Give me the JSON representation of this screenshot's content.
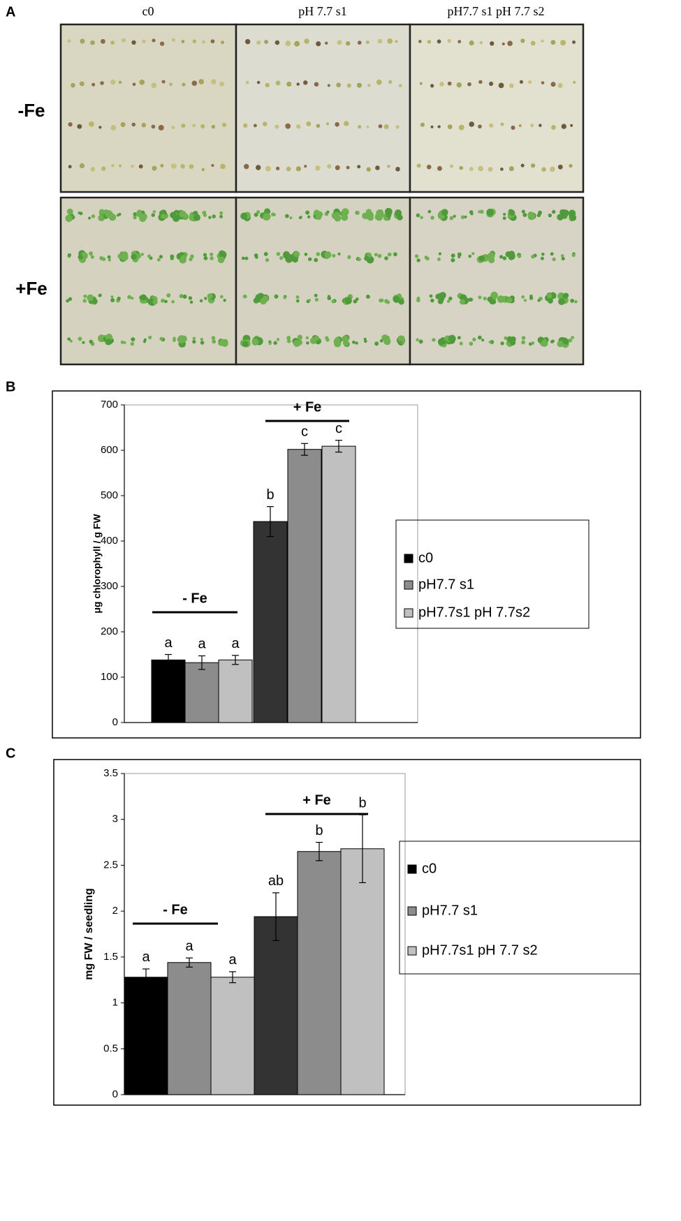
{
  "panel_a": {
    "label": "A",
    "columns": [
      "c0",
      "pH 7.7 s1",
      "pH7.7 s1 pH 7.7 s2"
    ],
    "rows": [
      "-Fe",
      "+Fe"
    ]
  },
  "chart_data": [
    {
      "type": "bar",
      "label": "B",
      "ylabel": "μg chlorophyll / g FW",
      "groups": [
        "- Fe",
        "+ Fe"
      ],
      "ylim": [
        0,
        700
      ],
      "yticks": [
        0,
        100,
        200,
        300,
        400,
        500,
        600,
        700
      ],
      "series": [
        {
          "name": "c0",
          "color": "#000000",
          "colors": [
            "#000000",
            "#333333"
          ],
          "values": [
            138,
            443
          ],
          "errors": [
            12,
            33
          ],
          "letters": [
            "a",
            "b"
          ]
        },
        {
          "name": "pH7.7 s1",
          "color": "#8c8c8c",
          "colors": [
            "#8c8c8c",
            "#8c8c8c"
          ],
          "values": [
            132,
            602
          ],
          "errors": [
            15,
            13
          ],
          "letters": [
            "a",
            "c"
          ]
        },
        {
          "name": "pH7.7s1 pH 7.7s2",
          "color": "#c0c0c0",
          "colors": [
            "#c0c0c0",
            "#c0c0c0"
          ],
          "values": [
            138,
            609
          ],
          "errors": [
            10,
            13
          ],
          "letters": [
            "a",
            "c"
          ]
        }
      ]
    },
    {
      "type": "bar",
      "label": "C",
      "ylabel": "mg FW / seedling",
      "groups": [
        "- Fe",
        "+ Fe"
      ],
      "ylim": [
        0,
        3.5
      ],
      "yticks": [
        0,
        0.5,
        1,
        1.5,
        2,
        2.5,
        3,
        3.5
      ],
      "series": [
        {
          "name": "c0",
          "color": "#000000",
          "colors": [
            "#000000",
            "#333333"
          ],
          "values": [
            1.28,
            1.94
          ],
          "errors": [
            0.09,
            0.26
          ],
          "letters": [
            "a",
            "ab"
          ]
        },
        {
          "name": "pH7.7 s1",
          "color": "#8c8c8c",
          "colors": [
            "#8c8c8c",
            "#8c8c8c"
          ],
          "values": [
            1.44,
            2.65
          ],
          "errors": [
            0.05,
            0.1
          ],
          "letters": [
            "a",
            "b"
          ]
        },
        {
          "name": "pH7.7s1 pH 7.7 s2",
          "color": "#c0c0c0",
          "colors": [
            "#c0c0c0",
            "#c0c0c0"
          ],
          "values": [
            1.28,
            2.68
          ],
          "errors": [
            0.06,
            0.37
          ],
          "letters": [
            "a",
            "b"
          ]
        }
      ]
    }
  ]
}
